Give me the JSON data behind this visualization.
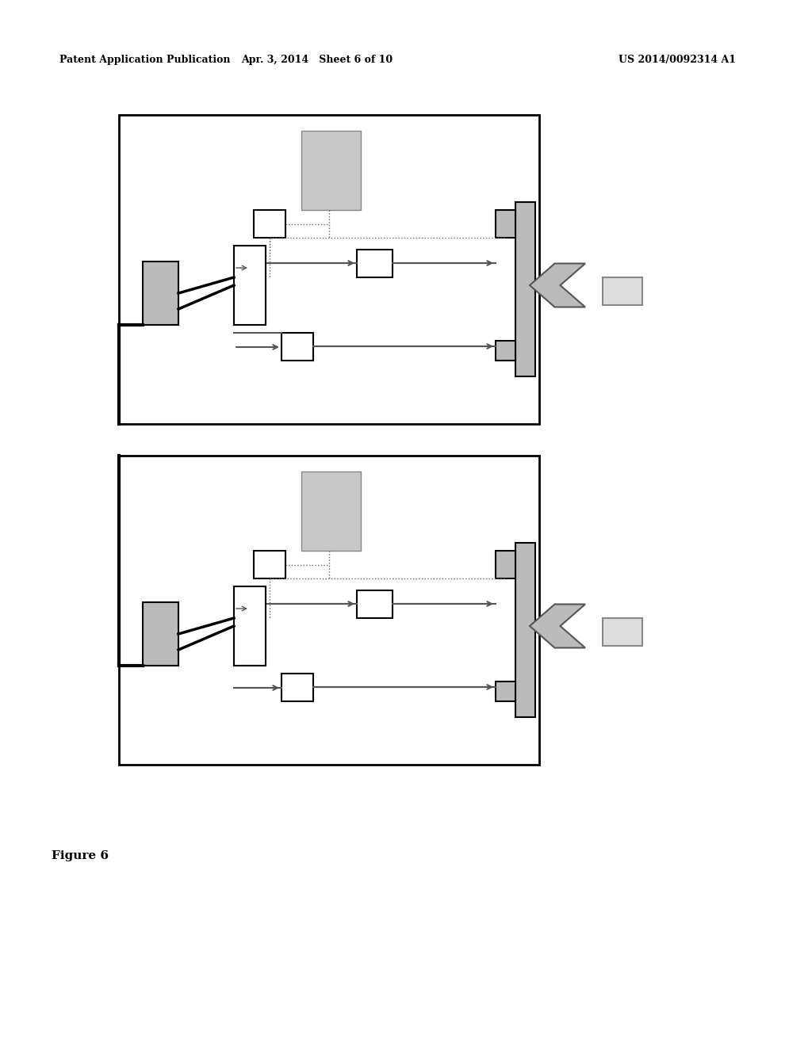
{
  "page_title_left": "Patent Application Publication",
  "page_title_mid": "Apr. 3, 2014   Sheet 6 of 10",
  "page_title_right": "US 2014/0092314 A1",
  "figure_label": "Figure 6",
  "bg_color": "#ffffff",
  "diagram_border_color": "#000000",
  "box_color_white": "#ffffff",
  "box_color_gray": "#c8c8c8",
  "box_color_light_gray": "#d8d8d8",
  "arrow_color": "#000000",
  "dotted_line_color": "#555555",
  "thick_line_color": "#000000"
}
